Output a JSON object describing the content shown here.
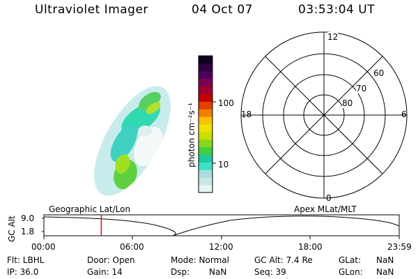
{
  "header": {
    "instrument": "Ultraviolet Imager",
    "date": "04 Oct 07",
    "time": "03:53:04 UT"
  },
  "colorbar": {
    "label": "photon cm⁻²s⁻¹",
    "ticks": [
      "100",
      "10"
    ],
    "colors": [
      "#e8f4f4",
      "#c8e8e8",
      "#a8dcdc",
      "#40e0c8",
      "#20c8a0",
      "#40d040",
      "#88d820",
      "#c8e000",
      "#f0e000",
      "#f8c000",
      "#f08000",
      "#e04000",
      "#c00000",
      "#a00030",
      "#800050",
      "#500060",
      "#300040",
      "#100020"
    ]
  },
  "polar": {
    "mlt_labels": {
      "top": "12",
      "left": "18",
      "right": "6",
      "bottom": "0"
    },
    "lat_labels": [
      "60",
      "70",
      "80"
    ]
  },
  "altitude_plot": {
    "ylabel": "GC Alt",
    "yticks": [
      "9.0",
      "1.8"
    ],
    "left_title": "Geographic Lat/Lon",
    "right_title": "Apex MLat/MLT",
    "xticks": [
      "00:00",
      "06:00",
      "12:00",
      "18:00",
      "23:59"
    ],
    "marker_color": "#ff0000",
    "current_time_hours": 3.88
  },
  "info": {
    "filter": "Flt: LBHL",
    "ip": "IP: 36.0",
    "door": "Door: Open",
    "gain": "Gain: 14",
    "mode": "Mode: Normal",
    "dsp": "Dsp:",
    "dsp_val": "NaN",
    "gcalt": "GC Alt: 7.4 Re",
    "seq": "Seq: 39",
    "glat": "GLat:",
    "glat_val": "NaN",
    "glon": "GLon:",
    "glon_val": "NaN"
  }
}
